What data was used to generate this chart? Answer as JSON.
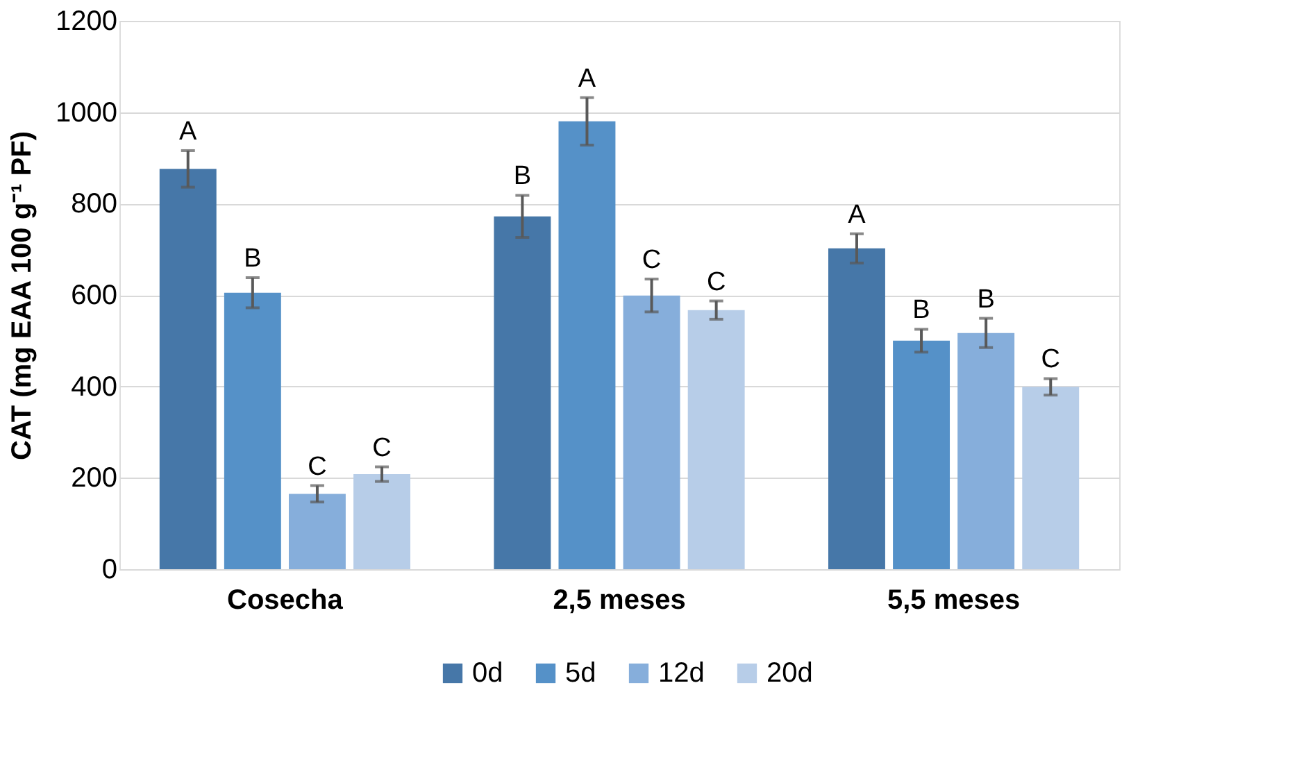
{
  "chart_data": {
    "type": "bar",
    "ylabel": "CAT (mg EAA 100 g⁻¹ PF)",
    "categories": [
      "Cosecha",
      "2,5 meses",
      "5,5 meses"
    ],
    "series": [
      {
        "name": "0d",
        "color": "#4677a8",
        "values": [
          876,
          772,
          702
        ],
        "errors": [
          40,
          46,
          32
        ],
        "value_labels": [
          "A",
          "B",
          "A"
        ]
      },
      {
        "name": "5d",
        "color": "#5591c8",
        "values": [
          605,
          980,
          500
        ],
        "errors": [
          33,
          52,
          25
        ],
        "value_labels": [
          "B",
          "A",
          "B"
        ]
      },
      {
        "name": "12d",
        "color": "#86aedb",
        "values": [
          165,
          599,
          517
        ],
        "errors": [
          18,
          36,
          32
        ],
        "value_labels": [
          "C",
          "C",
          "B"
        ]
      },
      {
        "name": "20d",
        "color": "#b7cde8",
        "values": [
          208,
          567,
          399
        ],
        "errors": [
          16,
          20,
          18
        ],
        "value_labels": [
          "C",
          "C",
          "C"
        ]
      }
    ],
    "ylim": [
      0,
      1200
    ],
    "yticks": [
      0,
      200,
      400,
      600,
      800,
      1000,
      1200
    ],
    "grid": "y",
    "legend": "bottom"
  }
}
